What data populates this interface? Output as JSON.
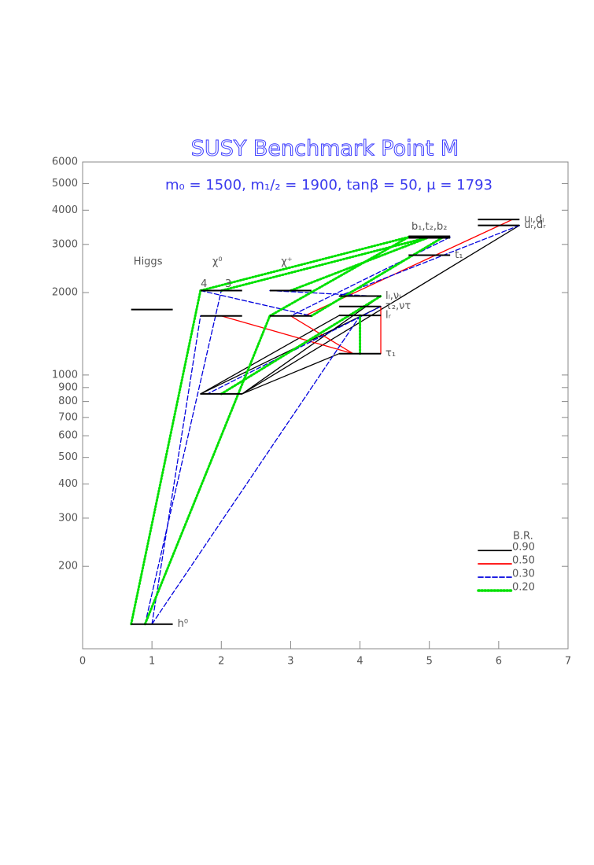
{
  "chart_data": {
    "type": "level-scheme",
    "title": "SUSY Benchmark Point M",
    "subtitle": "m₀ = 1500, m₁/₂ = 1900, tanβ = 50,  μ = 1793",
    "log_y": true,
    "xlim": [
      0,
      7
    ],
    "xticks": [
      0,
      1,
      2,
      3,
      4,
      5,
      6,
      7
    ],
    "ylim": [
      100,
      6000
    ],
    "yticks": [
      200,
      300,
      400,
      500,
      600,
      700,
      800,
      900,
      1000,
      2000,
      3000,
      4000,
      5000,
      6000
    ],
    "columns": [
      {
        "text": "Higgs",
        "x": 1.0
      },
      {
        "text": "χ⁰",
        "x": 2.0
      },
      {
        "text": "χ⁺",
        "x": 3.0
      }
    ],
    "index_labels": [
      {
        "text": "4",
        "x": 1.75,
        "mass": 2034
      },
      {
        "text": "3",
        "x": 2.1,
        "mass": 2034
      }
    ],
    "levels": [
      {
        "x": [
          0.7,
          1.3
        ],
        "mass": 123,
        "label": "h⁰"
      },
      {
        "x": [
          0.7,
          1.3
        ],
        "mass": 1734
      },
      {
        "x": [
          1.7,
          2.3
        ],
        "mass": 853
      },
      {
        "x": [
          1.7,
          2.3
        ],
        "mass": 1644
      },
      {
        "x": [
          1.7,
          2.3
        ],
        "mass": 2034
      },
      {
        "x": [
          2.7,
          3.3
        ],
        "mass": 1644
      },
      {
        "x": [
          2.7,
          3.3
        ],
        "mass": 2034
      },
      {
        "x": [
          3.7,
          4.3
        ],
        "mass": 1197,
        "label": "τ₁"
      },
      {
        "x": [
          3.7,
          4.3
        ],
        "mass": 1650,
        "label": "lᵣ"
      },
      {
        "x": [
          3.7,
          4.3
        ],
        "mass": 1780,
        "label": "τ₂,ντ"
      },
      {
        "x": [
          3.7,
          4.3
        ],
        "mass": 1942,
        "label": "lₗ,νₗ"
      },
      {
        "x": [
          4.7,
          5.3
        ],
        "mass": 2740,
        "label": "t₁"
      },
      {
        "x": [
          4.7,
          5.3
        ],
        "mass": 3190,
        "label": "b₁,t₂,b₂",
        "label_side": "above",
        "thick": true
      },
      {
        "x": [
          5.7,
          6.3
        ],
        "mass": 3520,
        "label": "uᵣ,dᵣ"
      },
      {
        "x": [
          5.7,
          6.3
        ],
        "mass": 3700,
        "label": "uₗ,dₗ"
      }
    ],
    "legend": {
      "title": "B.R.",
      "entries": [
        {
          "value": 0.9,
          "label": "0.90",
          "color": "#000000",
          "style": "solid"
        },
        {
          "value": 0.5,
          "label": "0.50",
          "color": "#ff0000",
          "style": "solid"
        },
        {
          "value": 0.3,
          "label": "0.30",
          "color": "#0000dd",
          "style": "dashed"
        },
        {
          "value": 0.2,
          "label": "0.20",
          "color": "#00e000",
          "style": "dotted"
        }
      ]
    },
    "decays": [
      {
        "from": [
          6.3,
          3520
        ],
        "to": [
          2.3,
          853
        ],
        "br": 0.9
      },
      {
        "from": [
          3.7,
          1650
        ],
        "to": [
          1.7,
          853
        ],
        "br": 0.9
      },
      {
        "from": [
          4.3,
          1780
        ],
        "to": [
          1.7,
          853
        ],
        "br": 0.9
      },
      {
        "from": [
          4.3,
          1942
        ],
        "to": [
          2.3,
          853
        ],
        "br": 0.9
      },
      {
        "from": [
          3.7,
          1197
        ],
        "to": [
          2.3,
          853
        ],
        "br": 0.9
      },
      {
        "from": [
          3.7,
          1650
        ],
        "to": [
          4.3,
          1650
        ],
        "br": 0.9
      },
      {
        "from": [
          6.2,
          3700
        ],
        "to": [
          3.2,
          1644
        ],
        "br": 0.5
      },
      {
        "from": [
          2.0,
          1644
        ],
        "to": [
          3.9,
          1197
        ],
        "br": 0.5
      },
      {
        "from": [
          3.0,
          1644
        ],
        "to": [
          3.9,
          1197
        ],
        "br": 0.5
      },
      {
        "from": [
          4.3,
          1780
        ],
        "to": [
          4.3,
          1197
        ],
        "br": 0.5
      },
      {
        "from": [
          1.0,
          123
        ],
        "to": [
          1.7,
          1644
        ],
        "br": 0.3
      },
      {
        "from": [
          1.0,
          123
        ],
        "to": [
          4.0,
          1644
        ],
        "br": 0.3
      },
      {
        "from": [
          0.9,
          123
        ],
        "to": [
          2.0,
          2034
        ],
        "br": 0.3
      },
      {
        "from": [
          1.7,
          2034
        ],
        "to": [
          3.3,
          1644
        ],
        "br": 0.3
      },
      {
        "from": [
          5.3,
          3190
        ],
        "to": [
          3.0,
          1644
        ],
        "br": 0.3
      },
      {
        "from": [
          6.3,
          3520
        ],
        "to": [
          3.7,
          1942
        ],
        "br": 0.3
      },
      {
        "from": [
          4.3,
          1942
        ],
        "to": [
          2.0,
          853
        ],
        "br": 0.3
      },
      {
        "from": [
          4.3,
          1780
        ],
        "to": [
          1.8,
          853
        ],
        "br": 0.3
      },
      {
        "from": [
          2.7,
          2034
        ],
        "to": [
          4.2,
          1942
        ],
        "br": 0.3
      },
      {
        "from": [
          0.7,
          123
        ],
        "to": [
          1.7,
          2034
        ],
        "br": 0.2
      },
      {
        "from": [
          0.9,
          123
        ],
        "to": [
          2.7,
          1644
        ],
        "br": 0.2
      },
      {
        "from": [
          1.7,
          2034
        ],
        "to": [
          4.7,
          3190
        ],
        "br": 0.2
      },
      {
        "from": [
          2.0,
          2034
        ],
        "to": [
          5.0,
          3190
        ],
        "br": 0.2
      },
      {
        "from": [
          2.7,
          1644
        ],
        "to": [
          4.7,
          3190
        ],
        "br": 0.2
      },
      {
        "from": [
          3.0,
          2034
        ],
        "to": [
          5.0,
          3190
        ],
        "br": 0.2
      },
      {
        "from": [
          3.3,
          1644
        ],
        "to": [
          5.2,
          3190
        ],
        "br": 0.2
      },
      {
        "from": [
          4.0,
          1197
        ],
        "to": [
          4.0,
          1650
        ],
        "br": 0.2
      },
      {
        "from": [
          2.0,
          853
        ],
        "to": [
          4.3,
          1942
        ],
        "br": 0.2
      }
    ]
  }
}
